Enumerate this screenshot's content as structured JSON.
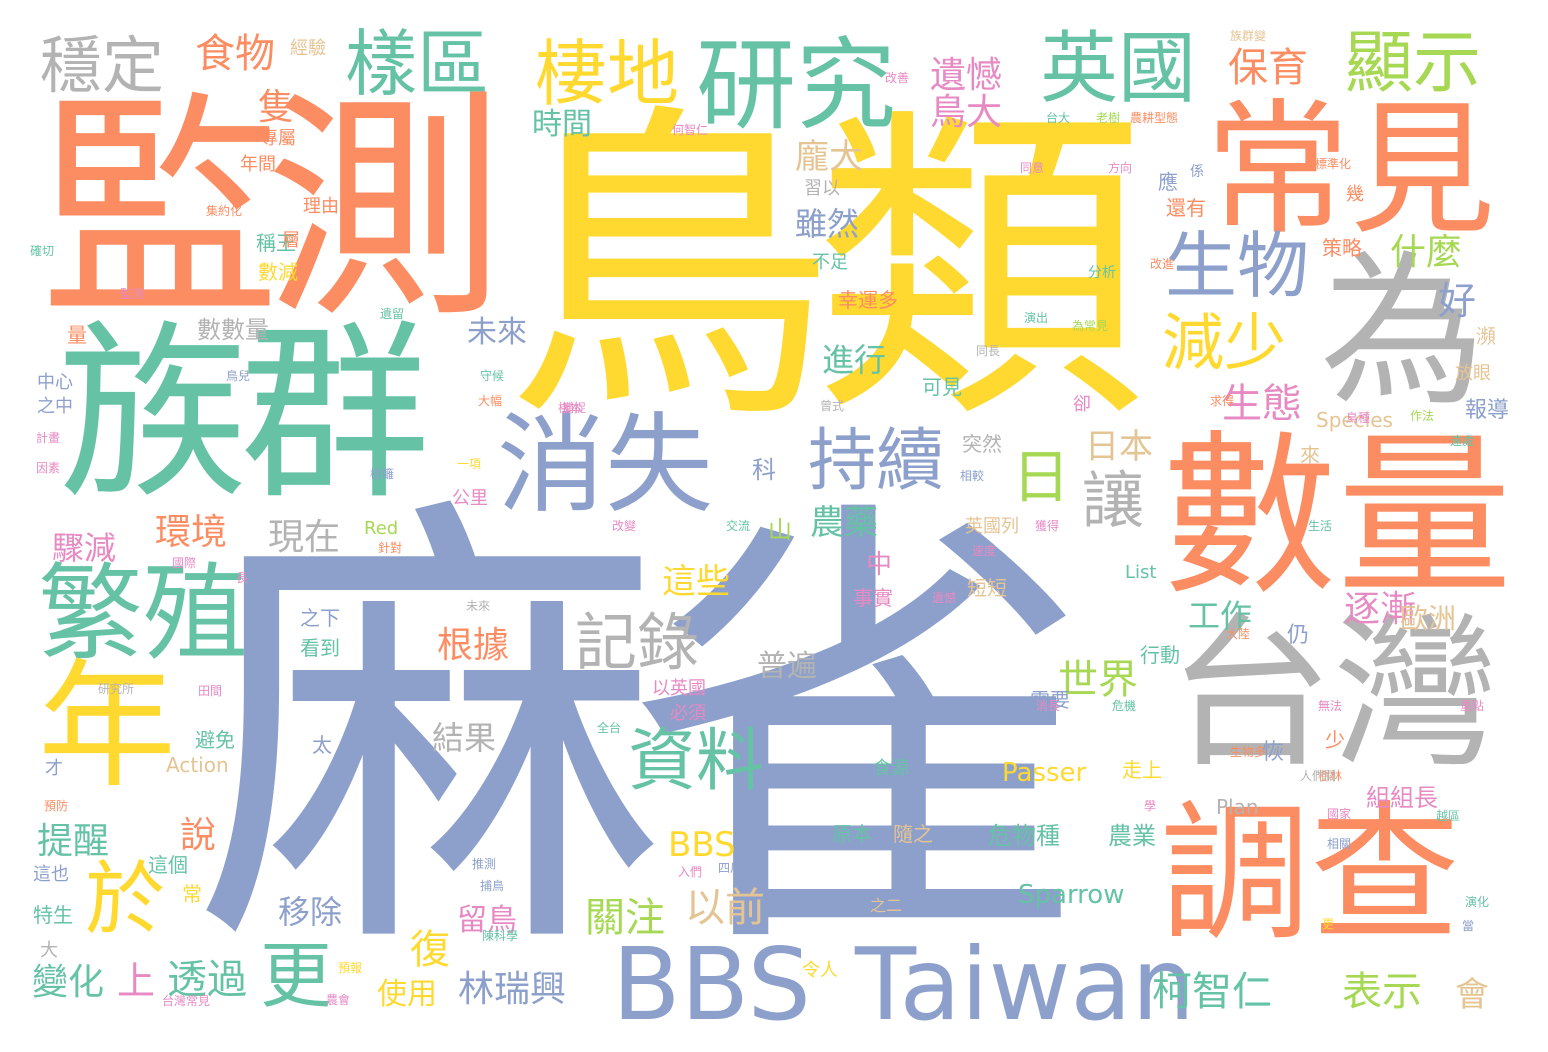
{
  "palette": {
    "periwinkle": "#8da0cb",
    "yellow": "#ffd92f",
    "teal": "#66c2a5",
    "coral": "#fc8d62",
    "gray": "#b3b3b3",
    "pink": "#e78ac3",
    "lime": "#a6d854",
    "tan": "#e5c494"
  },
  "words": [
    {
      "text": "麻雀",
      "color": "periwinkle"
    },
    {
      "text": "鳥類",
      "color": "yellow"
    },
    {
      "text": "監測",
      "color": "coral"
    },
    {
      "text": "族群",
      "color": "teal"
    },
    {
      "text": "數量",
      "color": "coral"
    },
    {
      "text": "台灣",
      "color": "gray"
    },
    {
      "text": "調查",
      "color": "coral"
    },
    {
      "text": "常見",
      "color": "coral"
    },
    {
      "text": "為",
      "color": "gray"
    },
    {
      "text": "研究",
      "color": "teal"
    },
    {
      "text": "消失",
      "color": "periwinkle"
    },
    {
      "text": "繁殖",
      "color": "teal"
    },
    {
      "text": "年",
      "color": "yellow"
    },
    {
      "text": "Taiwan",
      "color": "periwinkle"
    },
    {
      "text": "BBS",
      "color": "periwinkle"
    },
    {
      "text": "樣區",
      "color": "teal"
    },
    {
      "text": "棲地",
      "color": "yellow"
    },
    {
      "text": "英國",
      "color": "teal"
    },
    {
      "text": "顯示",
      "color": "lime"
    },
    {
      "text": "穩定",
      "color": "gray"
    },
    {
      "text": "生物",
      "color": "periwinkle"
    },
    {
      "text": "持續",
      "color": "periwinkle"
    },
    {
      "text": "資料",
      "color": "teal"
    },
    {
      "text": "記錄",
      "color": "gray"
    },
    {
      "text": "減少",
      "color": "yellow"
    },
    {
      "text": "讓",
      "color": "gray"
    },
    {
      "text": "日",
      "color": "lime"
    },
    {
      "text": "更",
      "color": "teal"
    },
    {
      "text": "於",
      "color": "yellow"
    },
    {
      "text": "食物",
      "color": "coral"
    },
    {
      "text": "保育",
      "color": "coral"
    },
    {
      "text": "遺憾",
      "color": "pink"
    },
    {
      "text": "鳥大",
      "color": "pink"
    },
    {
      "text": "隻",
      "color": "coral"
    },
    {
      "text": "時間",
      "color": "teal"
    },
    {
      "text": "龐大",
      "color": "tan"
    },
    {
      "text": "雖然",
      "color": "periwinkle"
    },
    {
      "text": "什麼",
      "color": "lime"
    },
    {
      "text": "好",
      "color": "periwinkle"
    },
    {
      "text": "生態",
      "color": "pink"
    },
    {
      "text": "未來",
      "color": "periwinkle"
    },
    {
      "text": "進行",
      "color": "teal"
    },
    {
      "text": "日本",
      "color": "tan"
    },
    {
      "text": "逐漸",
      "color": "pink"
    },
    {
      "text": "歐洲",
      "color": "tan"
    },
    {
      "text": "工作",
      "color": "teal"
    },
    {
      "text": "世界",
      "color": "lime"
    },
    {
      "text": "柯智仁",
      "color": "teal"
    },
    {
      "text": "表示",
      "color": "lime"
    },
    {
      "text": "會",
      "color": "tan"
    },
    {
      "text": "農藥",
      "color": "teal"
    },
    {
      "text": "山",
      "color": "lime"
    },
    {
      "text": "中",
      "color": "pink"
    },
    {
      "text": "這些",
      "color": "yellow"
    },
    {
      "text": "根據",
      "color": "coral"
    },
    {
      "text": "普遍",
      "color": "gray"
    },
    {
      "text": "結果",
      "color": "gray"
    },
    {
      "text": "現在",
      "color": "gray"
    },
    {
      "text": "環境",
      "color": "coral"
    },
    {
      "text": "驟減",
      "color": "pink"
    },
    {
      "text": "提醒",
      "color": "teal"
    },
    {
      "text": "說",
      "color": "coral"
    },
    {
      "text": "變化",
      "color": "teal"
    },
    {
      "text": "上",
      "color": "pink"
    },
    {
      "text": "透過",
      "color": "teal"
    },
    {
      "text": "移除",
      "color": "periwinkle"
    },
    {
      "text": "林瑞興",
      "color": "periwinkle"
    },
    {
      "text": "復",
      "color": "yellow"
    },
    {
      "text": "留鳥",
      "color": "pink"
    },
    {
      "text": "使用",
      "color": "yellow"
    },
    {
      "text": "關注",
      "color": "lime"
    },
    {
      "text": "以前",
      "color": "tan"
    },
    {
      "text": "Passer",
      "color": "yellow"
    },
    {
      "text": "Sparrow",
      "color": "teal"
    },
    {
      "text": "BBS",
      "color": "yellow"
    },
    {
      "text": "危物種",
      "color": "teal"
    },
    {
      "text": "農業",
      "color": "teal"
    },
    {
      "text": "組組長",
      "color": "pink"
    },
    {
      "text": "Action",
      "color": "tan"
    },
    {
      "text": "Red",
      "color": "lime"
    },
    {
      "text": "List",
      "color": "teal"
    },
    {
      "text": "Species",
      "color": "tan"
    },
    {
      "text": "Plan",
      "color": "gray"
    },
    {
      "text": "數數量",
      "color": "gray"
    },
    {
      "text": "中心",
      "color": "periwinkle"
    },
    {
      "text": "之中",
      "color": "periwinkle"
    },
    {
      "text": "報導",
      "color": "periwinkle"
    },
    {
      "text": "放眼",
      "color": "tan"
    },
    {
      "text": "策略",
      "color": "coral"
    },
    {
      "text": "幸運多",
      "color": "coral"
    },
    {
      "text": "突然",
      "color": "gray"
    },
    {
      "text": "可見",
      "color": "teal"
    },
    {
      "text": "英國列",
      "color": "tan"
    },
    {
      "text": "短短",
      "color": "tan"
    },
    {
      "text": "事實",
      "color": "pink"
    },
    {
      "text": "經驗",
      "color": "tan"
    },
    {
      "text": "專屬",
      "color": "coral"
    },
    {
      "text": "年間",
      "color": "coral"
    },
    {
      "text": "稱王",
      "color": "teal"
    },
    {
      "text": "數減",
      "color": "yellow"
    },
    {
      "text": "理由",
      "color": "coral"
    },
    {
      "text": "量",
      "color": "coral"
    },
    {
      "text": "習以",
      "color": "gray"
    },
    {
      "text": "不足",
      "color": "teal"
    },
    {
      "text": "應",
      "color": "periwinkle"
    },
    {
      "text": "還有",
      "color": "coral"
    },
    {
      "text": "行動",
      "color": "teal"
    },
    {
      "text": "需要",
      "color": "periwinkle"
    },
    {
      "text": "看到",
      "color": "teal"
    },
    {
      "text": "之下",
      "color": "periwinkle"
    },
    {
      "text": "以英國",
      "color": "pink"
    },
    {
      "text": "必須",
      "color": "pink"
    },
    {
      "text": "太",
      "color": "periwinkle"
    },
    {
      "text": "避免",
      "color": "teal"
    },
    {
      "text": "公里",
      "color": "pink"
    },
    {
      "text": "隨之",
      "color": "tan"
    },
    {
      "text": "原本",
      "color": "teal"
    },
    {
      "text": "食源",
      "color": "teal"
    },
    {
      "text": "走上",
      "color": "yellow"
    },
    {
      "text": "這個",
      "color": "teal"
    },
    {
      "text": "這也",
      "color": "periwinkle"
    },
    {
      "text": "特生",
      "color": "teal"
    },
    {
      "text": "常",
      "color": "yellow"
    },
    {
      "text": "大",
      "color": "gray"
    },
    {
      "text": "令人",
      "color": "yellow"
    },
    {
      "text": "之二",
      "color": "tan"
    },
    {
      "text": "才",
      "color": "periwinkle"
    },
    {
      "text": "少",
      "color": "coral"
    },
    {
      "text": "恢",
      "color": "periwinkle"
    },
    {
      "text": "仍",
      "color": "periwinkle"
    },
    {
      "text": "科",
      "color": "periwinkle"
    },
    {
      "text": "來",
      "color": "tan"
    },
    {
      "text": "卻",
      "color": "pink"
    },
    {
      "text": "幾",
      "color": "coral"
    },
    {
      "text": "瀕",
      "color": "tan"
    },
    {
      "text": "層",
      "color": "coral"
    },
    {
      "text": "分析",
      "color": "teal"
    },
    {
      "text": "為常見",
      "color": "lime"
    },
    {
      "text": "標準化",
      "color": "coral"
    },
    {
      "text": "族群變",
      "color": "tan"
    },
    {
      "text": "台大",
      "color": "teal"
    },
    {
      "text": "老樹",
      "color": "lime"
    },
    {
      "text": "農耕型態",
      "color": "coral"
    },
    {
      "text": "何智仁",
      "color": "pink"
    },
    {
      "text": "改善",
      "color": "pink"
    },
    {
      "text": "同意",
      "color": "pink"
    },
    {
      "text": "方向",
      "color": "pink"
    },
    {
      "text": "係",
      "color": "periwinkle"
    },
    {
      "text": "確切",
      "color": "teal"
    },
    {
      "text": "集約化",
      "color": "coral"
    },
    {
      "text": "遺憾",
      "color": "pink"
    },
    {
      "text": "研究所",
      "color": "gray"
    },
    {
      "text": "田間",
      "color": "pink"
    },
    {
      "text": "預防",
      "color": "coral"
    },
    {
      "text": "國際",
      "color": "pink"
    },
    {
      "text": "生物多",
      "color": "coral"
    },
    {
      "text": "國家",
      "color": "pink"
    },
    {
      "text": "相關",
      "color": "periwinkle"
    },
    {
      "text": "演化",
      "color": "teal"
    },
    {
      "text": "當",
      "color": "periwinkle"
    },
    {
      "text": "四川",
      "color": "periwinkle"
    },
    {
      "text": "入們",
      "color": "pink"
    },
    {
      "text": "台灣常見",
      "color": "pink"
    },
    {
      "text": "農會",
      "color": "pink"
    },
    {
      "text": "生活",
      "color": "teal"
    },
    {
      "text": "改變",
      "color": "pink"
    },
    {
      "text": "交流",
      "color": "teal"
    },
    {
      "text": "大陸",
      "color": "coral"
    },
    {
      "text": "危機",
      "color": "teal"
    },
    {
      "text": "全台",
      "color": "teal"
    },
    {
      "text": "捕捉",
      "color": "pink"
    },
    {
      "text": "守候",
      "color": "teal"
    },
    {
      "text": "大幅",
      "color": "coral"
    },
    {
      "text": "一項",
      "color": "yellow"
    },
    {
      "text": "樹籬",
      "color": "periwinkle"
    },
    {
      "text": "捕鳥",
      "color": "periwinkle"
    },
    {
      "text": "獲得",
      "color": "pink"
    },
    {
      "text": "針對",
      "color": "coral"
    },
    {
      "text": "未來",
      "color": "gray"
    },
    {
      "text": "長",
      "color": "pink"
    },
    {
      "text": "無法",
      "color": "pink"
    },
    {
      "text": "同長",
      "color": "gray"
    },
    {
      "text": "鳥兒",
      "color": "periwinkle"
    },
    {
      "text": "計畫",
      "color": "pink"
    },
    {
      "text": "因素",
      "color": "pink"
    },
    {
      "text": "遺留",
      "color": "teal"
    },
    {
      "text": "監測",
      "color": "pink"
    },
    {
      "text": "預報",
      "color": "yellow"
    },
    {
      "text": "陳科學",
      "color": "teal"
    },
    {
      "text": "推測",
      "color": "periwinkle"
    },
    {
      "text": "相較",
      "color": "periwinkle"
    },
    {
      "text": "鳥種",
      "color": "pink"
    },
    {
      "text": "演出",
      "color": "teal"
    },
    {
      "text": "速度",
      "color": "pink"
    },
    {
      "text": "消長",
      "color": "pink"
    },
    {
      "text": "樹林",
      "color": "coral"
    },
    {
      "text": "人們關",
      "color": "gray"
    },
    {
      "text": "學",
      "color": "pink"
    },
    {
      "text": "更",
      "color": "yellow"
    },
    {
      "text": "重點",
      "color": "pink"
    },
    {
      "text": "曾式",
      "color": "gray"
    },
    {
      "text": "遠處",
      "color": "teal"
    },
    {
      "text": "越區",
      "color": "teal"
    },
    {
      "text": "作法",
      "color": "lime"
    },
    {
      "text": "樣本",
      "color": "pink"
    },
    {
      "text": "改進",
      "color": "coral"
    },
    {
      "text": "求得",
      "color": "coral"
    },
    {
      "text": "擔任",
      "color": "pink"
    },
    {
      "text": "棲地",
      "color": "lime"
    },
    {
      "text": "保存",
      "color": "pink"
    }
  ]
}
